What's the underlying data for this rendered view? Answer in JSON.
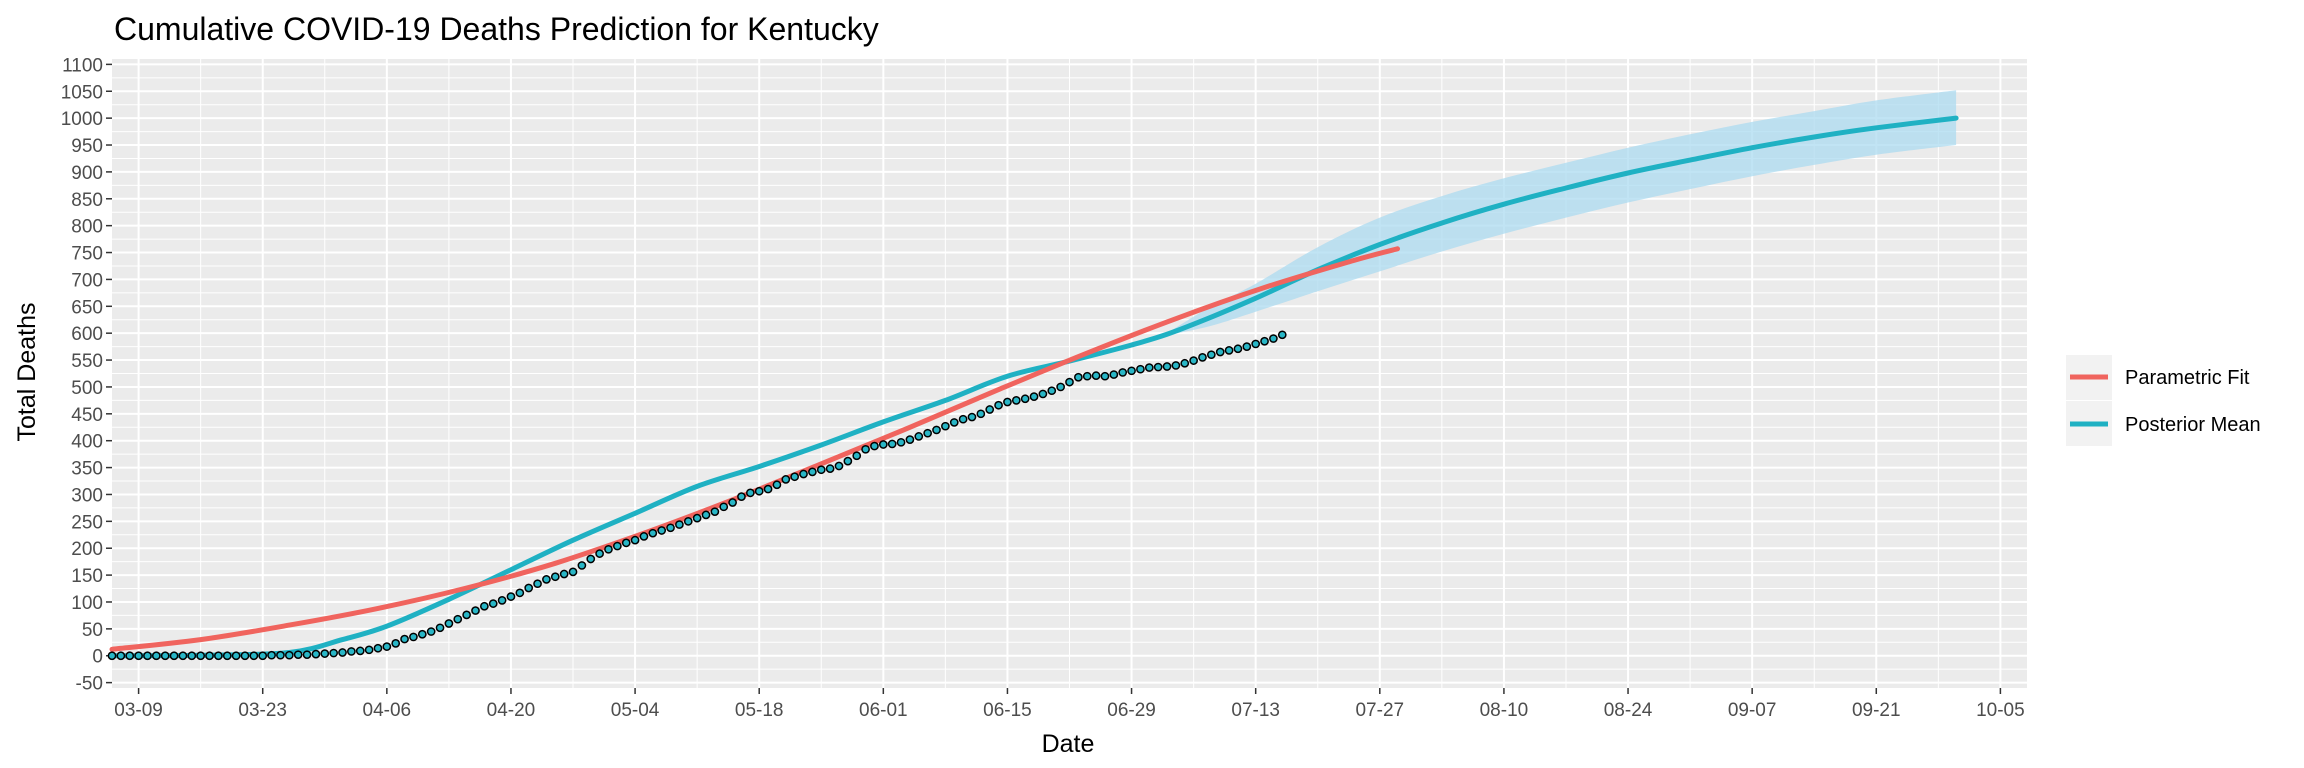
{
  "chart_data": {
    "type": "line",
    "title": "Cumulative COVID-19 Deaths Prediction for Kentucky",
    "xlabel": "Date",
    "ylabel": "Total Deaths",
    "x_axis": {
      "start": "2020-03-06",
      "end": "2020-10-08",
      "ticks": [
        {
          "date": "2020-03-09",
          "label": "03-09"
        },
        {
          "date": "2020-03-23",
          "label": "03-23"
        },
        {
          "date": "2020-04-06",
          "label": "04-06"
        },
        {
          "date": "2020-04-20",
          "label": "04-20"
        },
        {
          "date": "2020-05-04",
          "label": "05-04"
        },
        {
          "date": "2020-05-18",
          "label": "05-18"
        },
        {
          "date": "2020-06-01",
          "label": "06-01"
        },
        {
          "date": "2020-06-15",
          "label": "06-15"
        },
        {
          "date": "2020-06-29",
          "label": "06-29"
        },
        {
          "date": "2020-07-13",
          "label": "07-13"
        },
        {
          "date": "2020-07-27",
          "label": "07-27"
        },
        {
          "date": "2020-08-10",
          "label": "08-10"
        },
        {
          "date": "2020-08-24",
          "label": "08-24"
        },
        {
          "date": "2020-09-07",
          "label": "09-07"
        },
        {
          "date": "2020-09-21",
          "label": "09-21"
        },
        {
          "date": "2020-10-05",
          "label": "10-05"
        }
      ]
    },
    "ylim": [
      -60,
      1110
    ],
    "y_ticks": [
      "-50",
      "0",
      "50",
      "100",
      "150",
      "200",
      "250",
      "300",
      "350",
      "400",
      "450",
      "500",
      "550",
      "600",
      "650",
      "700",
      "750",
      "800",
      "850",
      "900",
      "950",
      "1000",
      "1050",
      "1100"
    ],
    "grid": true,
    "legend_position": "right",
    "colors": {
      "panel": "#ebebeb",
      "grid": "#ffffff",
      "parametric": "#f0645e",
      "posterior": "#1fb1c3",
      "band": "#a9daf0",
      "observed_fill": "#29b6c6",
      "observed_stroke": "#000000"
    },
    "series": [
      {
        "name": "Parametric Fit",
        "type": "line",
        "points": [
          {
            "x": "2020-03-06",
            "y": 12
          },
          {
            "x": "2020-03-16",
            "y": 30
          },
          {
            "x": "2020-03-26",
            "y": 57
          },
          {
            "x": "2020-04-05",
            "y": 88
          },
          {
            "x": "2020-04-15",
            "y": 126
          },
          {
            "x": "2020-04-25",
            "y": 172
          },
          {
            "x": "2020-05-05",
            "y": 228
          },
          {
            "x": "2020-05-15",
            "y": 290
          },
          {
            "x": "2020-05-25",
            "y": 357
          },
          {
            "x": "2020-06-04",
            "y": 425
          },
          {
            "x": "2020-06-14",
            "y": 495
          },
          {
            "x": "2020-06-24",
            "y": 563
          },
          {
            "x": "2020-07-04",
            "y": 627
          },
          {
            "x": "2020-07-14",
            "y": 685
          },
          {
            "x": "2020-07-24",
            "y": 735
          },
          {
            "x": "2020-07-29",
            "y": 757
          }
        ]
      },
      {
        "name": "Posterior Mean",
        "type": "line",
        "points": [
          {
            "x": "2020-03-06",
            "y": 0
          },
          {
            "x": "2020-03-16",
            "y": 1
          },
          {
            "x": "2020-03-26",
            "y": 6
          },
          {
            "x": "2020-04-01",
            "y": 30
          },
          {
            "x": "2020-04-06",
            "y": 55
          },
          {
            "x": "2020-04-13",
            "y": 105
          },
          {
            "x": "2020-04-20",
            "y": 160
          },
          {
            "x": "2020-04-27",
            "y": 215
          },
          {
            "x": "2020-05-04",
            "y": 265
          },
          {
            "x": "2020-05-11",
            "y": 315
          },
          {
            "x": "2020-05-18",
            "y": 352
          },
          {
            "x": "2020-05-25",
            "y": 392
          },
          {
            "x": "2020-06-01",
            "y": 435
          },
          {
            "x": "2020-06-08",
            "y": 475
          },
          {
            "x": "2020-06-15",
            "y": 520
          },
          {
            "x": "2020-06-22",
            "y": 548
          },
          {
            "x": "2020-06-29",
            "y": 578
          },
          {
            "x": "2020-07-03",
            "y": 598
          },
          {
            "x": "2020-07-08",
            "y": 630
          },
          {
            "x": "2020-07-13",
            "y": 665
          },
          {
            "x": "2020-07-20",
            "y": 718
          },
          {
            "x": "2020-07-27",
            "y": 765
          },
          {
            "x": "2020-08-03",
            "y": 805
          },
          {
            "x": "2020-08-10",
            "y": 840
          },
          {
            "x": "2020-08-17",
            "y": 870
          },
          {
            "x": "2020-08-24",
            "y": 898
          },
          {
            "x": "2020-08-31",
            "y": 922
          },
          {
            "x": "2020-09-07",
            "y": 945
          },
          {
            "x": "2020-09-14",
            "y": 965
          },
          {
            "x": "2020-09-21",
            "y": 982
          },
          {
            "x": "2020-09-30",
            "y": 1000
          }
        ]
      }
    ],
    "credible_band": [
      {
        "x": "2020-07-03",
        "lower": 596,
        "upper": 600
      },
      {
        "x": "2020-07-08",
        "lower": 614,
        "upper": 650
      },
      {
        "x": "2020-07-13",
        "lower": 640,
        "upper": 692
      },
      {
        "x": "2020-07-20",
        "lower": 678,
        "upper": 760
      },
      {
        "x": "2020-07-27",
        "lower": 715,
        "upper": 815
      },
      {
        "x": "2020-08-03",
        "lower": 752,
        "upper": 855
      },
      {
        "x": "2020-08-10",
        "lower": 785,
        "upper": 888
      },
      {
        "x": "2020-08-17",
        "lower": 815,
        "upper": 917
      },
      {
        "x": "2020-08-24",
        "lower": 843,
        "upper": 945
      },
      {
        "x": "2020-08-31",
        "lower": 868,
        "upper": 970
      },
      {
        "x": "2020-09-07",
        "lower": 892,
        "upper": 993
      },
      {
        "x": "2020-09-14",
        "lower": 913,
        "upper": 1013
      },
      {
        "x": "2020-09-21",
        "lower": 932,
        "upper": 1033
      },
      {
        "x": "2020-09-30",
        "lower": 950,
        "upper": 1052
      }
    ],
    "observed": {
      "start": "2020-03-06",
      "values": [
        0,
        0,
        0,
        0,
        0,
        0,
        0,
        0,
        0,
        0,
        0,
        0,
        0,
        0,
        0,
        0,
        0,
        0,
        1,
        1,
        1,
        2,
        2,
        3,
        4,
        5,
        6,
        8,
        9,
        11,
        14,
        17,
        23,
        31,
        35,
        40,
        45,
        52,
        60,
        68,
        76,
        84,
        92,
        97,
        103,
        110,
        117,
        126,
        134,
        142,
        147,
        152,
        156,
        168,
        180,
        190,
        198,
        204,
        210,
        215,
        222,
        228,
        233,
        238,
        244,
        250,
        256,
        262,
        268,
        277,
        285,
        296,
        303,
        306,
        310,
        318,
        328,
        333,
        338,
        342,
        346,
        348,
        353,
        362,
        372,
        384,
        390,
        393,
        394,
        397,
        402,
        408,
        414,
        420,
        427,
        434,
        440,
        444,
        450,
        458,
        466,
        472,
        475,
        478,
        482,
        487,
        493,
        500,
        509,
        518,
        520,
        521,
        520,
        523,
        527,
        530,
        533,
        536,
        537,
        538,
        540,
        544,
        549,
        555,
        560,
        565,
        568,
        571,
        575,
        580,
        585,
        590,
        597
      ]
    }
  }
}
